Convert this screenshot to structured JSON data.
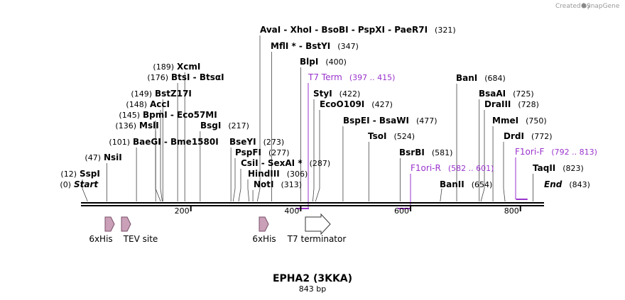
{
  "credit": "Created by",
  "credit_brand": "SnapGene",
  "title": "EPHA2 (3KKA)",
  "subtitle": "843 bp",
  "length": 843,
  "colors": {
    "primer": "#9933cc",
    "feature": "#c9a0b8",
    "backbone": "#000000"
  },
  "ticks": [
    {
      "pos": 200,
      "label": "200"
    },
    {
      "pos": 400,
      "label": "400"
    },
    {
      "pos": 600,
      "label": "600"
    },
    {
      "pos": 800,
      "label": "800"
    }
  ],
  "sites": [
    {
      "parts": [
        "Start"
      ],
      "pos": 0,
      "pos_label": "(0)",
      "end": true
    },
    {
      "parts": [
        "SspI"
      ],
      "pos": 12,
      "pos_label": "(12)"
    },
    {
      "parts": [
        "NsiI"
      ],
      "pos": 47,
      "pos_label": "(47)"
    },
    {
      "parts": [
        "BaeGI",
        "Bme1580I"
      ],
      "pos": 101,
      "pos_label": "(101)"
    },
    {
      "parts": [
        "MslI"
      ],
      "pos": 136,
      "pos_label": "(136)"
    },
    {
      "parts": [
        "BpmI",
        "Eco57MI"
      ],
      "pos": 145,
      "pos_label": "(145)"
    },
    {
      "parts": [
        "AccI"
      ],
      "pos": 148,
      "pos_label": "(148)"
    },
    {
      "parts": [
        "BstZ17I"
      ],
      "pos": 149,
      "pos_label": "(149)"
    },
    {
      "parts": [
        "BtsI",
        "BtsαI"
      ],
      "pos": 176,
      "pos_label": "(176)"
    },
    {
      "parts": [
        "XcmI"
      ],
      "pos": 189,
      "pos_label": "(189)"
    },
    {
      "parts": [
        "BsgI"
      ],
      "pos": 217,
      "pos_label": "(217)"
    },
    {
      "parts": [
        "BseYI"
      ],
      "pos": 273,
      "pos_label": "(273)"
    },
    {
      "parts": [
        "PspFI"
      ],
      "pos": 277,
      "pos_label": "(277)"
    },
    {
      "parts": [
        "CsiI",
        "SexAI *"
      ],
      "pos": 287,
      "pos_label": "(287)"
    },
    {
      "parts": [
        "HindIII"
      ],
      "pos": 306,
      "pos_label": "(306)"
    },
    {
      "parts": [
        "NotI"
      ],
      "pos": 313,
      "pos_label": "(313)"
    },
    {
      "parts": [
        "AvaI",
        "XhoI",
        "BsoBI",
        "PspXI",
        "PaeR7I"
      ],
      "pos": 321,
      "pos_label": "(321)"
    },
    {
      "parts": [
        "MflI *",
        "BstYI"
      ],
      "pos": 347,
      "pos_label": "(347)"
    },
    {
      "parts": [
        "BlpI"
      ],
      "pos": 400,
      "pos_label": "(400)"
    },
    {
      "parts": [
        "StyI"
      ],
      "pos": 422,
      "pos_label": "(422)"
    },
    {
      "parts": [
        "EcoO109I"
      ],
      "pos": 427,
      "pos_label": "(427)"
    },
    {
      "parts": [
        "BspEI",
        "BsaWI"
      ],
      "pos": 477,
      "pos_label": "(477)"
    },
    {
      "parts": [
        "TsoI"
      ],
      "pos": 524,
      "pos_label": "(524)"
    },
    {
      "parts": [
        "BsrBI"
      ],
      "pos": 581,
      "pos_label": "(581)"
    },
    {
      "parts": [
        "BanII"
      ],
      "pos": 654,
      "pos_label": "(654)"
    },
    {
      "parts": [
        "BanI"
      ],
      "pos": 684,
      "pos_label": "(684)"
    },
    {
      "parts": [
        "BsaAI"
      ],
      "pos": 725,
      "pos_label": "(725)"
    },
    {
      "parts": [
        "DraIII"
      ],
      "pos": 728,
      "pos_label": "(728)"
    },
    {
      "parts": [
        "MmeI"
      ],
      "pos": 750,
      "pos_label": "(750)"
    },
    {
      "parts": [
        "DrdI"
      ],
      "pos": 772,
      "pos_label": "(772)"
    },
    {
      "parts": [
        "TaqII"
      ],
      "pos": 823,
      "pos_label": "(823)"
    },
    {
      "parts": [
        "End"
      ],
      "pos": 843,
      "pos_label": "(843)",
      "end": true
    }
  ],
  "primers": [
    {
      "name": "T7 Term",
      "range": "(397 .. 415)",
      "start": 397,
      "stop": 415
    },
    {
      "name": "F1ori-R",
      "range": "(582 .. 601)",
      "start": 582,
      "stop": 601
    },
    {
      "name": "F1ori-F",
      "range": "(792 .. 813)",
      "start": 792,
      "stop": 813
    }
  ],
  "features": [
    {
      "label": "6xHis",
      "pos": 47,
      "type": "small"
    },
    {
      "label": "TEV site",
      "pos": 82,
      "type": "small"
    },
    {
      "label": "6xHis",
      "pos": 330,
      "type": "small"
    },
    {
      "label": "T7 terminator",
      "pos": 418,
      "type": "large"
    }
  ]
}
